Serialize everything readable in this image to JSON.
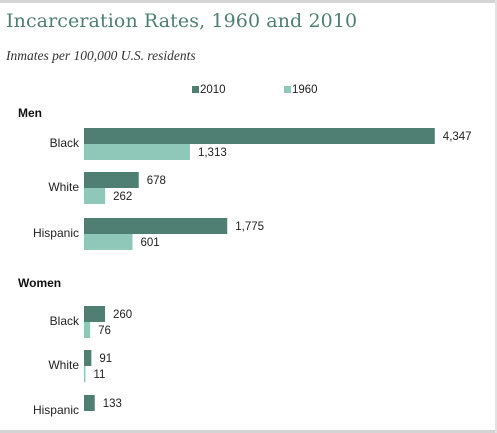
{
  "chart_data": {
    "type": "bar",
    "title": "Incarceration Rates, 1960 and 2010",
    "subtitle": "Inmates per 100,000 U.S. residents",
    "legend": [
      "2010",
      "1960"
    ],
    "legend_position": "top",
    "orientation": "horizontal",
    "colors": {
      "2010": "#4f7f73",
      "1960": "#8fc7b9"
    },
    "groups": [
      {
        "label": "Men",
        "categories": [
          {
            "label": "Black",
            "values": {
              "2010": 4347,
              "1960": 1313
            },
            "value_labels": {
              "2010": "4,347",
              "1960": "1,313"
            }
          },
          {
            "label": "White",
            "values": {
              "2010": 678,
              "1960": 262
            },
            "value_labels": {
              "2010": "678",
              "1960": "262"
            }
          },
          {
            "label": "Hispanic",
            "values": {
              "2010": 1775,
              "1960": 601
            },
            "value_labels": {
              "2010": "1,775",
              "1960": "601"
            }
          }
        ]
      },
      {
        "label": "Women",
        "categories": [
          {
            "label": "Black",
            "values": {
              "2010": 260,
              "1960": 76
            },
            "value_labels": {
              "2010": "260",
              "1960": "76"
            }
          },
          {
            "label": "White",
            "values": {
              "2010": 91,
              "1960": 11
            },
            "value_labels": {
              "2010": "91",
              "1960": "11"
            }
          },
          {
            "label": "Hispanic",
            "values": {
              "2010": 133
            },
            "value_labels": {
              "2010": "133"
            }
          }
        ]
      }
    ]
  }
}
